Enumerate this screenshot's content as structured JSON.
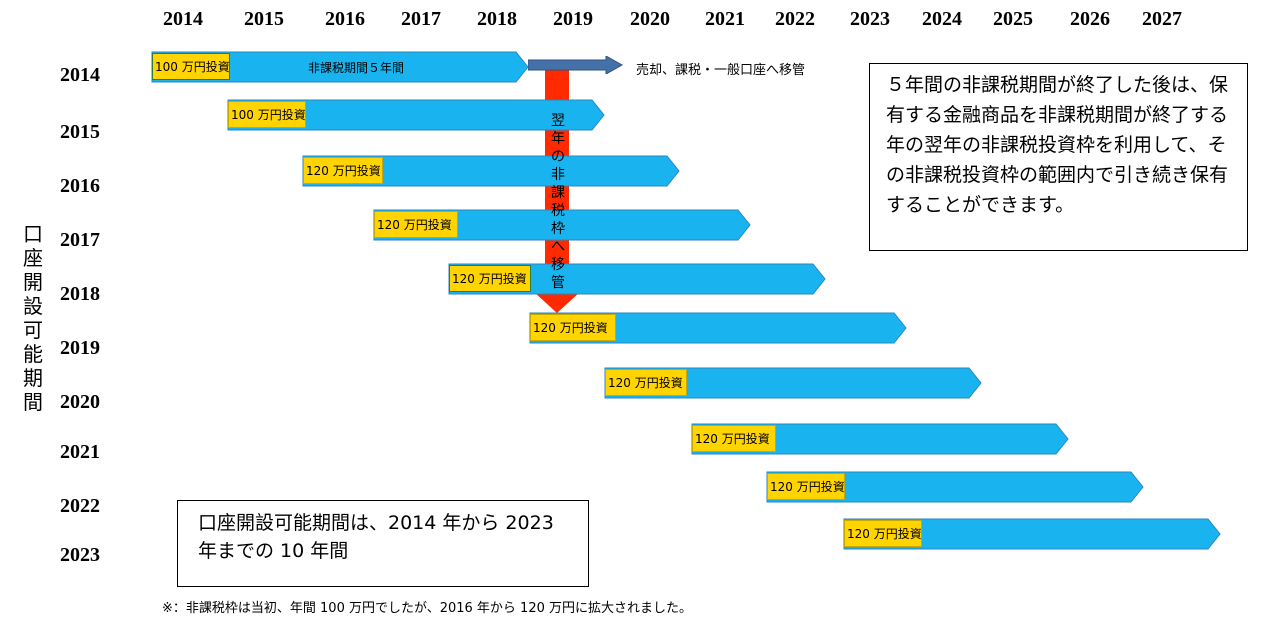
{
  "header_years": [
    "2014",
    "2015",
    "2016",
    "2017",
    "2018",
    "2019",
    "2020",
    "2021",
    "2022",
    "2023",
    "2024",
    "2025",
    "2026",
    "2027"
  ],
  "row_years": [
    "2014",
    "2015",
    "2016",
    "2017",
    "2018",
    "2019",
    "2020",
    "2021",
    "2022",
    "2023"
  ],
  "vertical_label": "口座開設可能期間",
  "bars": [
    {
      "amount": "100 万円投資",
      "label": "非課税期間５年間"
    },
    {
      "amount": "100 万円投資"
    },
    {
      "amount": "120 万円投資"
    },
    {
      "amount": "120 万円投資"
    },
    {
      "amount": "120 万円投資"
    },
    {
      "amount": "120 万円投資"
    },
    {
      "amount": "120 万円投資"
    },
    {
      "amount": "120 万円投資"
    },
    {
      "amount": "120 万円投資"
    },
    {
      "amount": "120 万円投資"
    }
  ],
  "transfer_label": "売却、課税・一般口座へ移管",
  "rollover_label": "翌年の非課税枠へ移管",
  "note_box": "５年間の非課税期間が終了した後は、保有する金融商品を非課税期間が終了する年の翌年の非課税投資枠を利用して、その非課税投資枠の範囲内で引き続き保有することができます。",
  "period_box": "口座開設可能期間は、2014 年から 2023 年までの 10 年間",
  "footnote": "※：非課税枠は当初、年間 100 万円でしたが、2016 年から 120 万円に拡大されました。",
  "colors": {
    "bar_fill": "#19b4f0",
    "bar_stroke": "#2a86c0",
    "amount_fill": "#ffd400",
    "rollover_arrow": "#ff2a00",
    "transfer_arrow": "#4472a8"
  }
}
